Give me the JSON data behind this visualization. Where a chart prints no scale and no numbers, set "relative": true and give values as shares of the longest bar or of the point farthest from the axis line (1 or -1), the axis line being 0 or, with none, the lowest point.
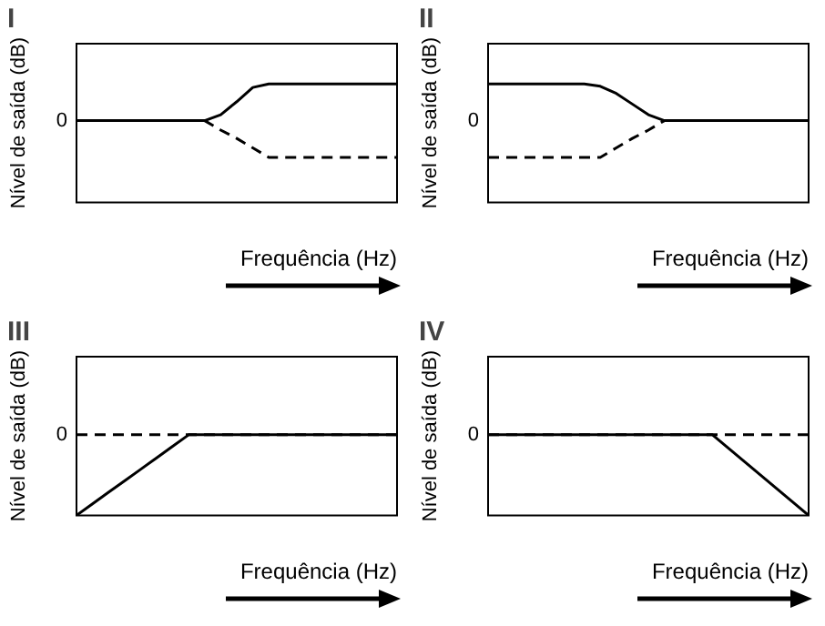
{
  "chart_data": [
    {
      "type": "line",
      "title": "I",
      "xlabel": "Frequência (Hz)",
      "ylabel": "Nível de saída (dB)",
      "relative": true,
      "grid": false,
      "legend": false,
      "marker": "none",
      "annotations": [
        "0"
      ],
      "categories": [
        null,
        null,
        null,
        null,
        null,
        null,
        null,
        null,
        null,
        null,
        null,
        null,
        null,
        null,
        null,
        null,
        null,
        null,
        null,
        null,
        null
      ],
      "series": [
        {
          "color": "#000000",
          "line_style": "solid",
          "values": [
            0.69,
            0.69,
            0.69,
            0.69,
            0.69,
            0.69,
            0.69,
            0.69,
            0.69,
            0.74,
            0.85,
            0.97,
            1,
            1,
            1,
            1,
            1,
            1,
            1,
            1,
            1
          ]
        },
        {
          "color": "#000000",
          "line_style": "dashed",
          "values": [
            0.69,
            0.69,
            0.69,
            0.69,
            0.69,
            0.69,
            0.69,
            0.69,
            0.69,
            0.61,
            0.54,
            0.46,
            0.38,
            0.38,
            0.38,
            0.38,
            0.38,
            0.38,
            0.38,
            0.38,
            0.38
          ]
        }
      ]
    },
    {
      "type": "line",
      "title": "II",
      "xlabel": "Frequência (Hz)",
      "ylabel": "Nível de saída (dB)",
      "relative": true,
      "grid": false,
      "legend": false,
      "marker": "none",
      "annotations": [
        "0"
      ],
      "categories": [
        null,
        null,
        null,
        null,
        null,
        null,
        null,
        null,
        null,
        null,
        null,
        null,
        null,
        null,
        null,
        null,
        null,
        null,
        null,
        null,
        null
      ],
      "series": [
        {
          "color": "#000000",
          "line_style": "solid",
          "values": [
            1,
            1,
            1,
            1,
            1,
            1,
            1,
            0.98,
            0.92,
            0.83,
            0.74,
            0.69,
            0.69,
            0.69,
            0.69,
            0.69,
            0.69,
            0.69,
            0.69,
            0.69,
            0.69
          ]
        },
        {
          "color": "#000000",
          "line_style": "dashed",
          "values": [
            0.38,
            0.38,
            0.38,
            0.38,
            0.38,
            0.38,
            0.38,
            0.38,
            0.46,
            0.54,
            0.61,
            0.69,
            0.69,
            0.69,
            0.69,
            0.69,
            0.69,
            0.69,
            0.69,
            0.69,
            0.69
          ]
        }
      ]
    },
    {
      "type": "line",
      "title": "III",
      "xlabel": "Frequência (Hz)",
      "ylabel": "Nível de saída (dB)",
      "relative": true,
      "grid": false,
      "legend": false,
      "marker": "none",
      "annotations": [
        "0"
      ],
      "categories": [
        null,
        null,
        null,
        null,
        null,
        null,
        null,
        null,
        null,
        null,
        null,
        null,
        null,
        null,
        null,
        null,
        null,
        null,
        null,
        null,
        null
      ],
      "series": [
        {
          "color": "#000000",
          "line_style": "solid",
          "values": [
            0,
            0.143,
            0.286,
            0.429,
            0.571,
            0.714,
            0.857,
            1,
            1,
            1,
            1,
            1,
            1,
            1,
            1,
            1,
            1,
            1,
            1,
            1,
            1
          ]
        },
        {
          "color": "#000000",
          "line_style": "dashed",
          "values": [
            1,
            1,
            1,
            1,
            1,
            1,
            1,
            1,
            1,
            1,
            1,
            1,
            1,
            1,
            1,
            1,
            1,
            1,
            1,
            1,
            1
          ]
        }
      ]
    },
    {
      "type": "line",
      "title": "IV",
      "xlabel": "Frequência (Hz)",
      "ylabel": "Nível de saída (dB)",
      "relative": true,
      "grid": false,
      "legend": false,
      "marker": "none",
      "annotations": [
        "0"
      ],
      "categories": [
        null,
        null,
        null,
        null,
        null,
        null,
        null,
        null,
        null,
        null,
        null,
        null,
        null,
        null,
        null,
        null,
        null,
        null,
        null,
        null,
        null
      ],
      "series": [
        {
          "color": "#000000",
          "line_style": "solid",
          "values": [
            1,
            1,
            1,
            1,
            1,
            1,
            1,
            1,
            1,
            1,
            1,
            1,
            1,
            1,
            1,
            0.833,
            0.667,
            0.5,
            0.333,
            0.167,
            0
          ]
        },
        {
          "color": "#000000",
          "line_style": "dashed",
          "values": [
            1,
            1,
            1,
            1,
            1,
            1,
            1,
            1,
            1,
            1,
            1,
            1,
            1,
            1,
            1,
            1,
            1,
            1,
            1,
            1,
            1
          ]
        }
      ]
    }
  ]
}
